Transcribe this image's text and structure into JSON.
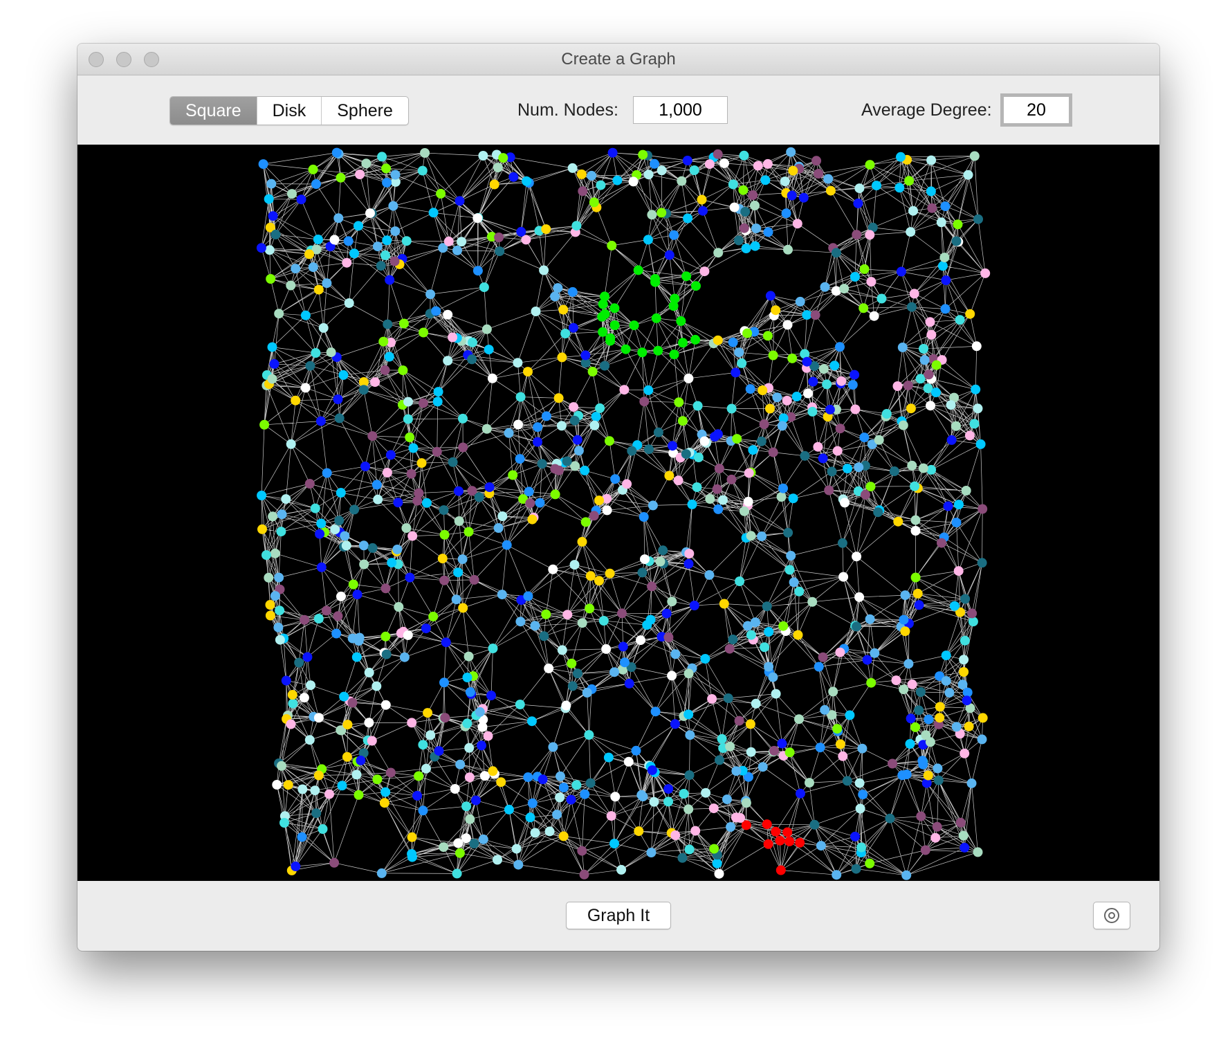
{
  "window": {
    "title": "Create a Graph"
  },
  "toolbar": {
    "shapes": [
      "Square",
      "Disk",
      "Sphere"
    ],
    "selected_shape": "Square",
    "num_nodes_label": "Num. Nodes:",
    "num_nodes_value": "1,000",
    "avg_degree_label": "Average Degree:",
    "avg_degree_value": "20"
  },
  "footer": {
    "button": "Graph It"
  }
}
